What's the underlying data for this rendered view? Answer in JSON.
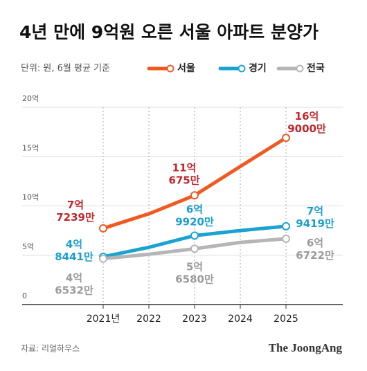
{
  "chart_data": {
    "type": "line",
    "title": "4년 만에 9억원 오른 서울 아파트 분양가",
    "subtitle": "단위: 원, 6월 평균 기준",
    "categories": [
      "2021년",
      "2022",
      "2023",
      "2024",
      "2025"
    ],
    "series": [
      {
        "name": "서울",
        "color": "#f05a22",
        "label_color": "#c1272d",
        "values": [
          7.7239,
          9.2,
          11.0675,
          14.0,
          16.9
        ],
        "value_labels": [
          [
            "7억",
            "7239만"
          ],
          null,
          [
            "11억",
            "675만"
          ],
          null,
          [
            "16억",
            "9000만"
          ]
        ]
      },
      {
        "name": "경기",
        "color": "#1aa3d1",
        "label_color": "#1a9ed0",
        "values": [
          4.8441,
          5.8,
          6.992,
          7.5,
          7.9419
        ],
        "value_labels": [
          [
            "4억",
            "8441만"
          ],
          null,
          [
            "6억",
            "9920만"
          ],
          null,
          [
            "7억",
            "9419만"
          ]
        ]
      },
      {
        "name": "전국",
        "color": "#b5b5b5",
        "label_color": "#9a9a9a",
        "values": [
          4.6532,
          5.1,
          5.658,
          6.3,
          6.6722
        ],
        "value_labels": [
          [
            "4억",
            "6532만"
          ],
          null,
          [
            "5억",
            "6580만"
          ],
          null,
          [
            "6억",
            "6722만"
          ]
        ]
      }
    ],
    "ylim": [
      0,
      20
    ],
    "yticks": [
      0,
      {
        "value": 5,
        "label": "5억"
      },
      {
        "value": 10,
        "label": "10억"
      },
      {
        "value": 15,
        "label": "15억"
      },
      {
        "value": 20,
        "label": "20억"
      }
    ],
    "grid": true,
    "source": "자료: 리얼하우스",
    "brand": "The JoongAng"
  }
}
